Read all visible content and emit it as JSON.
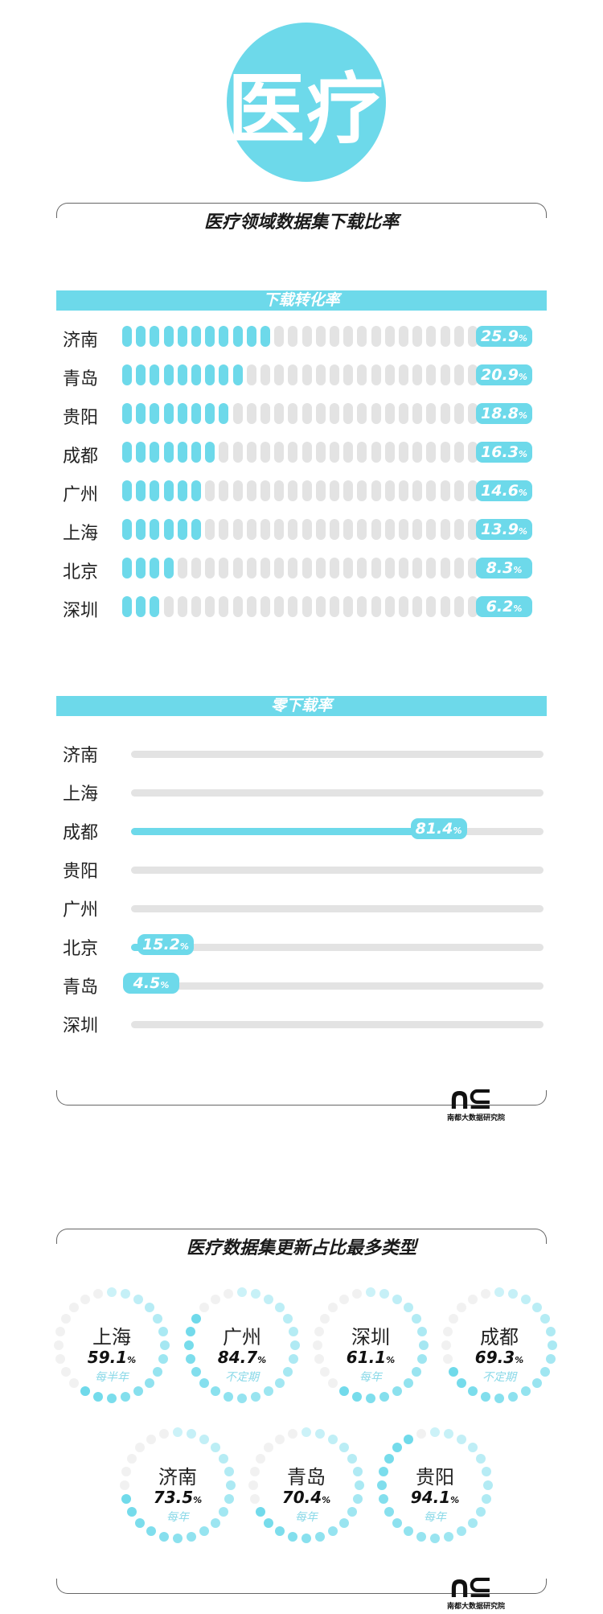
{
  "hero": {
    "title": "医疗"
  },
  "section1": {
    "title": "医疗领域数据集下载比率",
    "conversion": {
      "band": "下载转化率",
      "rows": [
        {
          "city": "济南",
          "value": "25.9",
          "unit": "%"
        },
        {
          "city": "青岛",
          "value": "20.9",
          "unit": "%"
        },
        {
          "city": "贵阳",
          "value": "18.8",
          "unit": "%"
        },
        {
          "city": "成都",
          "value": "16.3",
          "unit": "%"
        },
        {
          "city": "广州",
          "value": "14.6",
          "unit": "%"
        },
        {
          "city": "上海",
          "value": "13.9",
          "unit": "%"
        },
        {
          "city": "北京",
          "value": "8.3",
          "unit": "%"
        },
        {
          "city": "深圳",
          "value": "6.2",
          "unit": "%"
        }
      ]
    },
    "zero": {
      "band": "零下载率",
      "rows": [
        {
          "city": "济南",
          "value": ""
        },
        {
          "city": "上海",
          "value": ""
        },
        {
          "city": "成都",
          "value": "81.4",
          "unit": "%"
        },
        {
          "city": "贵阳",
          "value": ""
        },
        {
          "city": "广州",
          "value": ""
        },
        {
          "city": "北京",
          "value": "15.2",
          "unit": "%"
        },
        {
          "city": "青岛",
          "value": "4.5",
          "unit": "%"
        },
        {
          "city": "深圳",
          "value": ""
        }
      ]
    }
  },
  "logo": {
    "text": "南都大数据研究院"
  },
  "section2": {
    "title": "医疗数据集更新占比最多类型",
    "items": [
      {
        "city": "上海",
        "value": "59.1",
        "unit": "%",
        "kind": "每半年"
      },
      {
        "city": "广州",
        "value": "84.7",
        "unit": "%",
        "kind": "不定期"
      },
      {
        "city": "深圳",
        "value": "61.1",
        "unit": "%",
        "kind": "每年"
      },
      {
        "city": "成都",
        "value": "69.3",
        "unit": "%",
        "kind": "不定期"
      },
      {
        "city": "济南",
        "value": "73.5",
        "unit": "%",
        "kind": "每年"
      },
      {
        "city": "青岛",
        "value": "70.4",
        "unit": "%",
        "kind": "每年"
      },
      {
        "city": "贵阳",
        "value": "94.1",
        "unit": "%",
        "kind": "每年"
      }
    ]
  },
  "chart_data": [
    {
      "type": "bar",
      "title": "下载转化率",
      "categories": [
        "济南",
        "青岛",
        "贵阳",
        "成都",
        "广州",
        "上海",
        "北京",
        "深圳"
      ],
      "values": [
        25.9,
        20.9,
        18.8,
        16.3,
        14.6,
        13.9,
        8.3,
        6.2
      ],
      "unit": "%"
    },
    {
      "type": "bar",
      "title": "零下载率",
      "categories": [
        "济南",
        "上海",
        "成都",
        "贵阳",
        "广州",
        "北京",
        "青岛",
        "深圳"
      ],
      "values": [
        null,
        null,
        81.4,
        null,
        null,
        15.2,
        4.5,
        null
      ],
      "unit": "%"
    },
    {
      "type": "pie",
      "title": "医疗数据集更新占比最多类型",
      "categories": [
        "上海",
        "广州",
        "深圳",
        "成都",
        "济南",
        "青岛",
        "贵阳"
      ],
      "values": [
        59.1,
        84.7,
        61.1,
        69.3,
        73.5,
        70.4,
        94.1
      ],
      "labels": [
        "每半年",
        "不定期",
        "每年",
        "不定期",
        "每年",
        "每年",
        "每年"
      ],
      "unit": "%"
    }
  ],
  "colors": {
    "accent": "#6dd9ea",
    "track": "#e3e3e3",
    "text": "#222222",
    "kind": "#8ad9e8"
  }
}
